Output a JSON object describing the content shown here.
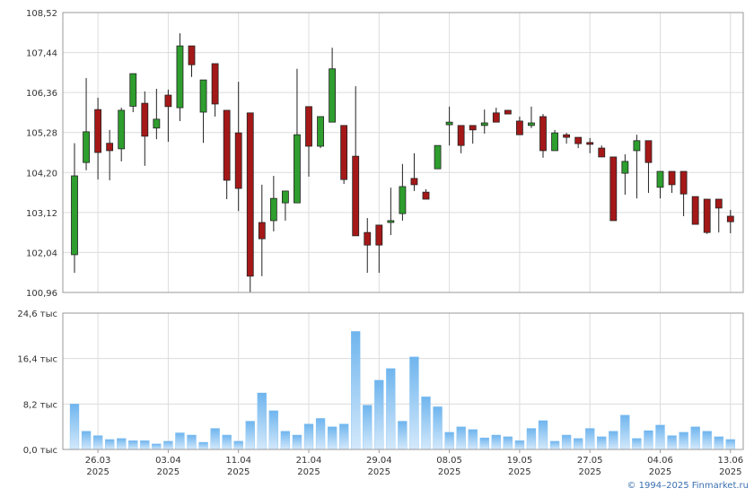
{
  "chart_data": [
    {
      "type": "candlestick",
      "open": [
        101.98,
        104.47,
        105.9,
        104.99,
        104.84,
        105.99,
        106.07,
        105.4,
        106.29,
        105.95,
        107.62,
        105.83,
        107.14,
        105.88,
        105.27,
        105.81,
        102.85,
        102.9,
        103.38,
        103.38,
        105.98,
        104.91,
        105.56,
        105.47,
        104.64,
        102.58,
        102.78,
        102.85,
        103.09,
        104.04,
        103.67,
        104.3,
        105.49,
        105.47,
        105.47,
        105.47,
        105.81,
        105.88,
        105.59,
        105.47,
        105.71,
        104.79,
        105.22,
        105.15,
        105.01,
        104.86,
        104.62,
        104.18,
        104.79,
        105.06,
        103.8,
        104.23,
        104.23,
        103.55,
        103.48,
        103.48,
        103.02
      ],
      "high": [
        104.99,
        106.75,
        106.22,
        105.35,
        105.95,
        106.87,
        106.39,
        106.46,
        106.44,
        107.96,
        107.62,
        106.7,
        107.14,
        105.88,
        106.65,
        105.81,
        103.87,
        104.11,
        103.7,
        107.0,
        105.98,
        105.71,
        107.57,
        105.47,
        106.53,
        102.97,
        102.78,
        103.79,
        104.43,
        104.72,
        103.75,
        104.93,
        105.98,
        105.47,
        105.47,
        105.9,
        105.95,
        105.88,
        105.71,
        105.98,
        105.78,
        105.35,
        105.27,
        105.15,
        105.13,
        104.93,
        104.62,
        104.69,
        105.22,
        105.06,
        104.23,
        104.23,
        104.23,
        103.55,
        103.48,
        103.48,
        103.19
      ],
      "low": [
        101.49,
        104.26,
        104.01,
        103.99,
        104.5,
        105.83,
        104.38,
        105.1,
        105.03,
        105.59,
        106.78,
        105.0,
        105.71,
        103.48,
        103.16,
        100.96,
        101.4,
        102.61,
        102.9,
        103.38,
        104.09,
        104.86,
        105.56,
        103.89,
        102.49,
        101.49,
        101.49,
        102.51,
        102.9,
        103.7,
        103.48,
        104.3,
        104.93,
        104.72,
        104.98,
        105.25,
        105.56,
        105.78,
        105.22,
        105.4,
        104.6,
        104.79,
        104.98,
        104.86,
        104.72,
        104.62,
        102.9,
        103.6,
        103.5,
        103.65,
        103.5,
        103.65,
        103.02,
        102.8,
        102.54,
        102.58,
        102.56
      ],
      "close": [
        104.11,
        105.3,
        104.74,
        104.79,
        105.88,
        106.87,
        105.18,
        105.64,
        105.98,
        107.62,
        107.11,
        106.7,
        106.05,
        103.99,
        103.77,
        101.4,
        102.41,
        103.5,
        103.7,
        105.22,
        104.91,
        105.71,
        107.0,
        104.01,
        102.49,
        102.24,
        102.24,
        102.9,
        103.82,
        103.87,
        103.48,
        104.93,
        105.56,
        104.93,
        105.35,
        105.54,
        105.56,
        105.78,
        105.22,
        105.54,
        104.79,
        105.27,
        105.15,
        104.98,
        104.96,
        104.62,
        102.9,
        104.5,
        105.06,
        104.47,
        104.23,
        103.87,
        103.62,
        102.8,
        102.58,
        103.24,
        102.87
      ],
      "up_color": "#2e9e2e",
      "down_color": "#a51818",
      "ylim": [
        100.96,
        108.52
      ],
      "yticks": [
        {
          "value": 100.96,
          "label": "100,96"
        },
        {
          "value": 102.04,
          "label": "102,04"
        },
        {
          "value": 103.12,
          "label": "103,12"
        },
        {
          "value": 104.2,
          "label": "104,20"
        },
        {
          "value": 105.28,
          "label": "105,28"
        },
        {
          "value": 106.36,
          "label": "106,36"
        },
        {
          "value": 107.44,
          "label": "107,44"
        },
        {
          "value": 108.52,
          "label": "108,52"
        }
      ],
      "grid": true
    },
    {
      "type": "bar",
      "categories": [
        null,
        null,
        "26.03\n2025",
        null,
        null,
        null,
        null,
        null,
        "03.04\n2025",
        null,
        null,
        null,
        null,
        null,
        "11.04\n2025",
        null,
        null,
        null,
        null,
        null,
        "21.04\n2025",
        null,
        null,
        null,
        null,
        null,
        "29.04\n2025",
        null,
        null,
        null,
        null,
        null,
        "08.05\n2025",
        null,
        null,
        null,
        null,
        null,
        "19.05\n2025",
        null,
        null,
        null,
        null,
        null,
        "27.05\n2025",
        null,
        null,
        null,
        null,
        null,
        "04.06\n2025",
        null,
        null,
        null,
        null,
        null,
        "13.06\n2025"
      ],
      "values": [
        8.2,
        3.3,
        2.5,
        1.8,
        2.0,
        1.6,
        1.6,
        1.0,
        1.5,
        3.0,
        2.6,
        1.3,
        3.8,
        2.6,
        1.5,
        5.1,
        10.2,
        7.0,
        3.3,
        2.6,
        4.6,
        5.6,
        4.1,
        4.6,
        21.3,
        8.0,
        12.5,
        14.6,
        5.1,
        16.7,
        9.5,
        7.7,
        3.1,
        4.1,
        3.6,
        2.1,
        2.6,
        2.3,
        1.6,
        3.8,
        5.2,
        1.5,
        2.6,
        2.0,
        3.8,
        2.3,
        3.3,
        6.2,
        2.0,
        3.4,
        4.4,
        2.5,
        3.1,
        4.1,
        3.3,
        2.3,
        1.8
      ],
      "color": "#7bbcf0",
      "ylim": [
        0,
        24.6
      ],
      "yticks": [
        {
          "value": 0,
          "label": "0,0 тыс"
        },
        {
          "value": 8.2,
          "label": "8,2 тыс"
        },
        {
          "value": 16.4,
          "label": "16,4 тыс"
        },
        {
          "value": 24.6,
          "label": "24,6 тыс"
        }
      ],
      "grid": true
    }
  ],
  "footer": "© 1994–2025 Finmarket.ru"
}
